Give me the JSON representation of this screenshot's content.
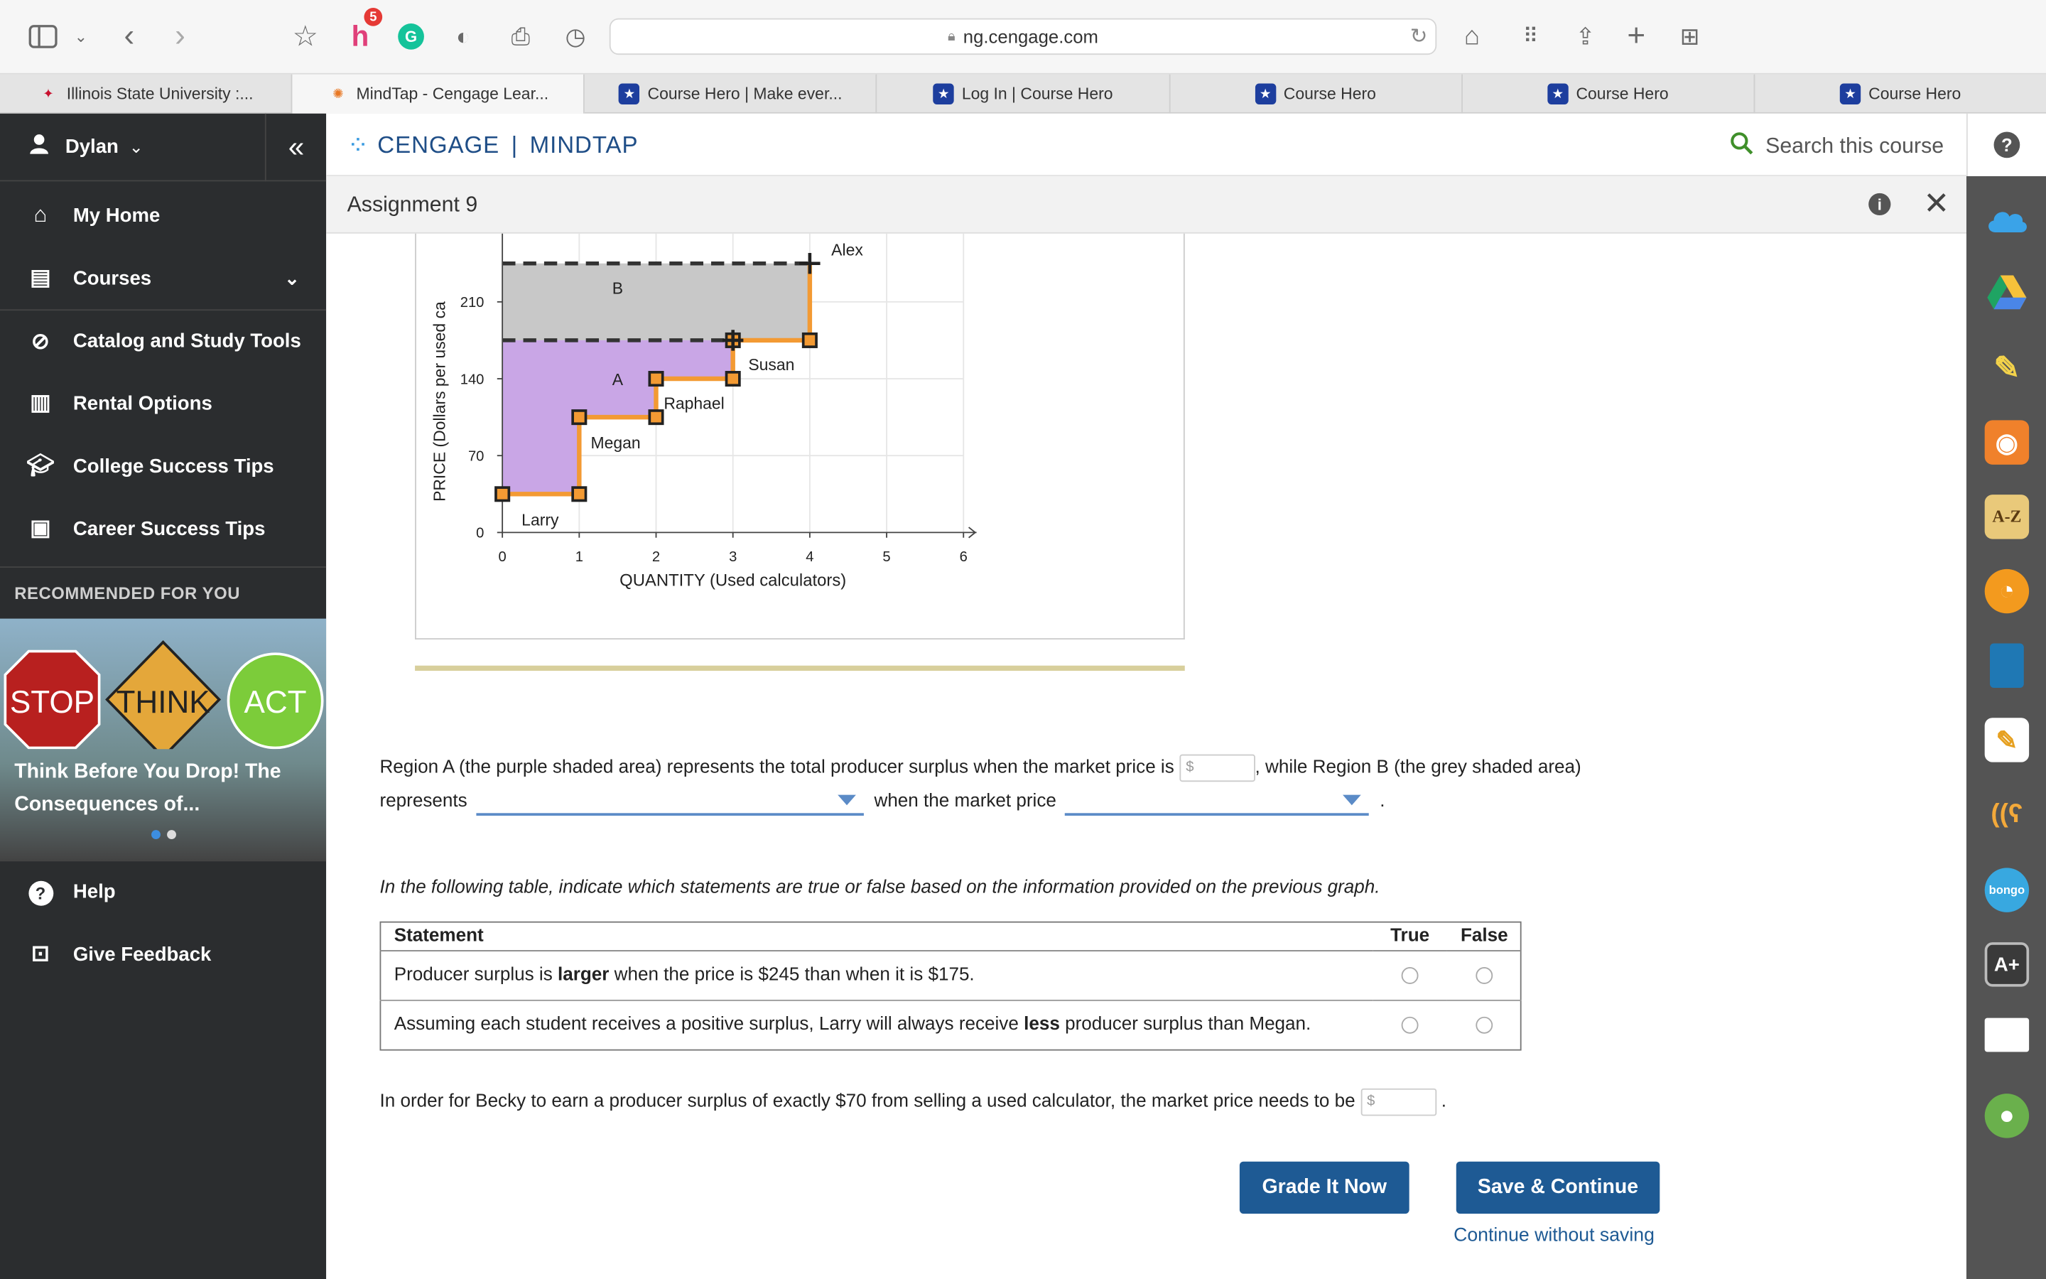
{
  "browser": {
    "url": "ng.cengage.com",
    "badge_count": "5",
    "tabs": [
      {
        "label": "Illinois State University :...",
        "active": false
      },
      {
        "label": "MindTap - Cengage Lear...",
        "active": true
      },
      {
        "label": "Course Hero | Make ever...",
        "active": false
      },
      {
        "label": "Log In | Course Hero",
        "active": false
      },
      {
        "label": "Course Hero",
        "active": false
      },
      {
        "label": "Course Hero",
        "active": false
      },
      {
        "label": "Course Hero",
        "active": false
      }
    ]
  },
  "sidebar": {
    "user": "Dylan",
    "items": [
      {
        "label": "My Home",
        "icon": "home-icon"
      },
      {
        "label": "Courses",
        "icon": "book-icon"
      },
      {
        "label": "Catalog and Study Tools",
        "icon": "compass-icon"
      },
      {
        "label": "Rental Options",
        "icon": "open-book-icon"
      },
      {
        "label": "College Success Tips",
        "icon": "graduation-cap-icon"
      },
      {
        "label": "Career Success Tips",
        "icon": "briefcase-icon"
      }
    ],
    "recommended_heading": "RECOMMENDED FOR YOU",
    "promo": {
      "signs": [
        "STOP",
        "THINK",
        "ACT"
      ],
      "title": "Think Before You Drop! The Consequences of..."
    },
    "bottom_items": [
      {
        "label": "Help",
        "icon": "question-circle-icon"
      },
      {
        "label": "Give Feedback",
        "icon": "feedback-icon"
      }
    ]
  },
  "header": {
    "brand_left": "CENGAGE",
    "brand_right": "MINDTAP",
    "search_placeholder": "Search this course",
    "help_glyph": "?"
  },
  "assignment": {
    "title": "Assignment 9"
  },
  "chart_data": {
    "type": "line",
    "xlabel": "QUANTITY (Used calculators)",
    "ylabel": "PRICE (Dollars per used ca",
    "x_ticks": [
      "0",
      "1",
      "2",
      "3",
      "4",
      "5",
      "6"
    ],
    "y_ticks": [
      "0",
      "70",
      "140",
      "210"
    ],
    "xlim": [
      0,
      6
    ],
    "ylim": [
      0,
      210
    ],
    "supply_points": [
      {
        "x": 0,
        "y": 35,
        "label": "Larry"
      },
      {
        "x": 1,
        "y": 35
      },
      {
        "x": 1,
        "y": 105,
        "label": "Megan"
      },
      {
        "x": 2,
        "y": 105
      },
      {
        "x": 2,
        "y": 140,
        "label": "Raphael"
      },
      {
        "x": 3,
        "y": 140
      },
      {
        "x": 3,
        "y": 175,
        "label": "Susan"
      },
      {
        "x": 4,
        "y": 175
      },
      {
        "x": 4,
        "y": 245,
        "label": "Alex"
      }
    ],
    "price_lines": [
      175,
      245
    ],
    "regions": [
      {
        "name": "A",
        "color": "#c9a6e6"
      },
      {
        "name": "B",
        "color": "#c8c8c8"
      }
    ],
    "supply_color": "#f39a33"
  },
  "question": {
    "region_text_1": "Region A (the purple shaded area) represents the total producer surplus when the market price is",
    "region_text_2": ", while Region B (the grey shaded area)",
    "represents": "represents",
    "when_price": "when the market price",
    "period": ".",
    "dollar_placeholder": "$",
    "table_intro": "In the following table, indicate which statements are true or false based on the information provided on the previous graph.",
    "table": {
      "headers": [
        "Statement",
        "True",
        "False"
      ],
      "rows": [
        {
          "pre": "Producer surplus is ",
          "bold": "larger",
          "post": " when the price is $245 than when it is $175."
        },
        {
          "pre": "Assuming each student receives a positive surplus, Larry will always receive ",
          "bold": "less",
          "post": " producer surplus than Megan."
        }
      ]
    },
    "becky_text": "In order for Becky to earn a producer surplus of exactly $70 from selling a used calculator, the market price needs to be",
    "becky_period": "."
  },
  "actions": {
    "grade": "Grade It Now",
    "save": "Save & Continue",
    "continue": "Continue without saving"
  },
  "rail": {
    "az_label": "A-Z",
    "bongo_label": "bongo",
    "aplus_label": "A+"
  }
}
